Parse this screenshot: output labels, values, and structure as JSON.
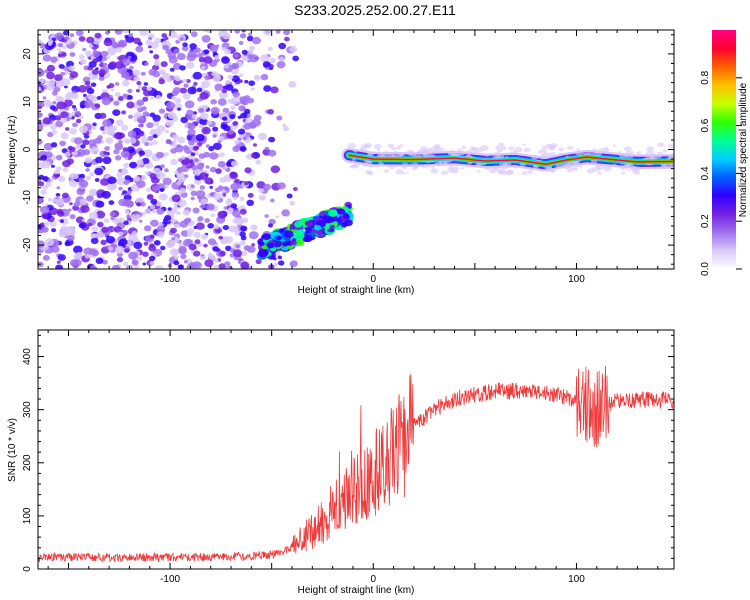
{
  "title": "S233.2025.252.00.27.E11",
  "colors": {
    "snr_line": "#ee3a3a",
    "colormap": [
      "#ffffff",
      "#d8c8f8",
      "#a070f0",
      "#7020e0",
      "#3000ff",
      "#0060ff",
      "#00d0ff",
      "#00ff90",
      "#30ff00",
      "#c8ff00",
      "#ffc000",
      "#ff6000",
      "#ff0030",
      "#ff0080"
    ]
  },
  "chart_data": [
    {
      "type": "heatmap",
      "name": "spectrogram",
      "xlabel": "Height of straight line (km)",
      "ylabel": "Frequency (Hz)",
      "xlim": [
        -165,
        148
      ],
      "ylim": [
        -25,
        25
      ],
      "xticks": [
        -100,
        0,
        100
      ],
      "yticks": [
        -20,
        -10,
        0,
        10,
        20
      ],
      "colorbar": {
        "label": "Normalized spectral amplitude",
        "range": [
          0,
          1
        ],
        "ticks": [
          "0.0",
          "0.2",
          "0.4",
          "0.6",
          "0.8"
        ]
      },
      "features": [
        {
          "name": "noise-region",
          "x_range": [
            -165,
            -40
          ],
          "freq_range": [
            -25,
            25
          ],
          "amplitude": 0.15
        },
        {
          "name": "rising-band",
          "x_range": [
            -55,
            -12
          ],
          "freq_range": [
            -22,
            -12
          ],
          "amplitude": 0.45
        },
        {
          "name": "main-band",
          "x_range": [
            -12,
            148
          ],
          "freq_center": -2,
          "freq_halfwidth": 1.3,
          "amplitude": 0.95
        }
      ]
    },
    {
      "type": "line",
      "name": "snr",
      "xlabel": "Height of straight line (km)",
      "ylabel": "SNR (10 * v/v)",
      "xlim": [
        -165,
        148
      ],
      "ylim": [
        0,
        450
      ],
      "xticks": [
        -100,
        0,
        100
      ],
      "yticks": [
        0,
        100,
        200,
        300,
        400
      ],
      "series": [
        {
          "name": "SNR",
          "points": [
            [
              -165,
              22
            ],
            [
              -120,
              22
            ],
            [
              -80,
              22
            ],
            [
              -50,
              26
            ],
            [
              -40,
              40
            ],
            [
              -30,
              70
            ],
            [
              -20,
              110
            ],
            [
              -10,
              150
            ],
            [
              0,
              175
            ],
            [
              10,
              210
            ],
            [
              20,
              270
            ],
            [
              30,
              300
            ],
            [
              40,
              320
            ],
            [
              60,
              335
            ],
            [
              80,
              335
            ],
            [
              100,
              320
            ],
            [
              110,
              300
            ],
            [
              120,
              318
            ],
            [
              148,
              318
            ]
          ]
        }
      ]
    }
  ]
}
